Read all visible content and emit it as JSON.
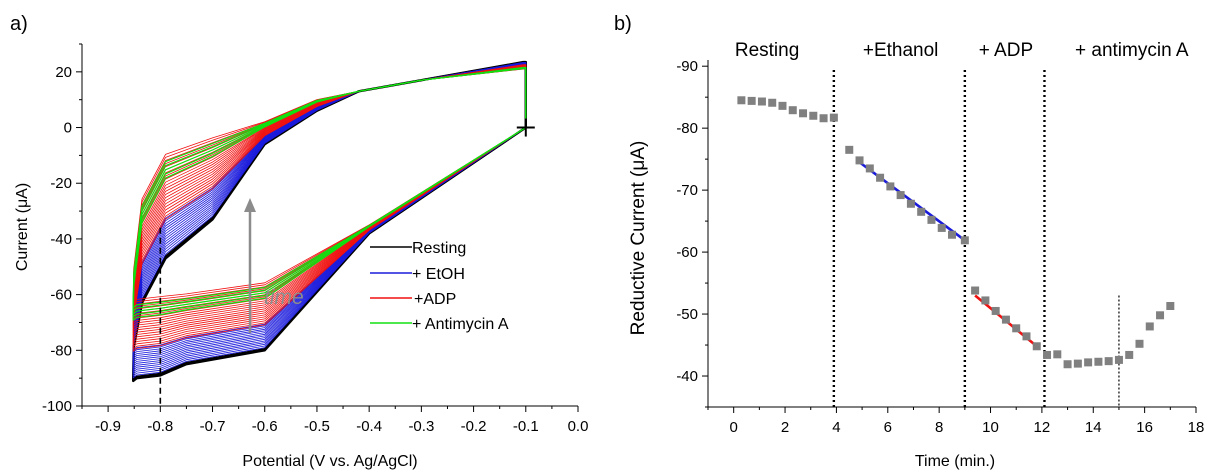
{
  "chart_data": [
    {
      "panel_label": "a)",
      "type": "line",
      "xlabel": "Potential (V vs. Ag/AgCl)",
      "ylabel": "Current (μA)",
      "xlim": [
        -0.95,
        0.0
      ],
      "ylim": [
        -100,
        30
      ],
      "x_ticks": [
        -0.9,
        -0.8,
        -0.7,
        -0.6,
        -0.5,
        -0.4,
        -0.3,
        -0.2,
        -0.1,
        0.0
      ],
      "x_tick_labels": [
        "-0.9",
        "-0.8",
        "-0.7",
        "-0.6",
        "-0.5",
        "-0.4",
        "-0.3",
        "-0.2",
        "-0.1",
        "0.0"
      ],
      "y_ticks": [
        20,
        0,
        -20,
        -40,
        -60,
        -80,
        -100
      ],
      "y_tick_labels": [
        "20",
        "0",
        "-20",
        "-40",
        "-60",
        "-80",
        "-100"
      ],
      "grid": false,
      "legend_position": "bottom-right",
      "series": [
        {
          "name": "Resting",
          "color": "#000000"
        },
        {
          "name": "+ EtOH",
          "color": "#1a1adc"
        },
        {
          "name": "+ADP",
          "color": "#f01010"
        },
        {
          "name": "+ Antimycin A",
          "color": "#10e010"
        }
      ],
      "annotations": {
        "time_label": "time",
        "marker_x": -0.8
      }
    },
    {
      "panel_label": "b)",
      "type": "scatter",
      "xlabel": "Time (min.)",
      "ylabel": "Reductive Current (μA)",
      "xlim": [
        -1,
        18
      ],
      "ylim": [
        -35,
        -91
      ],
      "x_ticks": [
        0,
        2,
        4,
        6,
        8,
        10,
        12,
        14,
        16,
        18
      ],
      "x_tick_labels": [
        "0",
        "2",
        "4",
        "6",
        "8",
        "10",
        "12",
        "14",
        "16",
        "18"
      ],
      "y_ticks": [
        -90,
        -80,
        -70,
        -60,
        -50,
        -40
      ],
      "y_tick_labels": [
        "-90",
        "-80",
        "-70",
        "-60",
        "-50",
        "-40"
      ],
      "grid": false,
      "regions": [
        {
          "label": "Resting",
          "x": 1.3
        },
        {
          "label": "+Ethanol",
          "x": 6.5
        },
        {
          "label": "+ ADP",
          "x": 10.6
        },
        {
          "label": "+ antimycin A",
          "x": 15.5
        }
      ],
      "dividers": [
        3.9,
        9.0,
        12.1,
        15.0
      ],
      "points": {
        "x": [
          0.3,
          0.7,
          1.1,
          1.5,
          1.9,
          2.3,
          2.7,
          3.1,
          3.5,
          3.9,
          4.5,
          4.9,
          5.3,
          5.7,
          6.1,
          6.5,
          6.9,
          7.3,
          7.7,
          8.1,
          8.5,
          9.0,
          9.4,
          9.8,
          10.2,
          10.6,
          11.0,
          11.4,
          11.8,
          12.2,
          12.6,
          13.0,
          13.4,
          13.8,
          14.2,
          14.6,
          15.0,
          15.4,
          15.8,
          16.2,
          16.6,
          17.0
        ],
        "y": [
          -84.5,
          -84.4,
          -84.3,
          -84.1,
          -83.6,
          -82.9,
          -82.4,
          -82.0,
          -81.6,
          -81.7,
          -76.5,
          -74.8,
          -73.5,
          -72.0,
          -70.6,
          -69.2,
          -67.8,
          -66.5,
          -65.2,
          -63.9,
          -62.8,
          -61.9,
          -53.8,
          -52.2,
          -50.5,
          -49.1,
          -47.7,
          -46.4,
          -44.8,
          -43.4,
          -43.5,
          -41.9,
          -42.0,
          -42.2,
          -42.3,
          -42.4,
          -42.6,
          -43.4,
          -45.2,
          -48.0,
          -49.8,
          -51.3
        ]
      },
      "fits": [
        {
          "color": "#1a1adc",
          "x": [
            4.8,
            9.0
          ],
          "y": [
            -74.8,
            -61.9
          ]
        },
        {
          "color": "#f01010",
          "x": [
            9.4,
            11.8
          ],
          "y": [
            -53.0,
            -44.8
          ]
        }
      ],
      "point_color": "#808080"
    }
  ]
}
